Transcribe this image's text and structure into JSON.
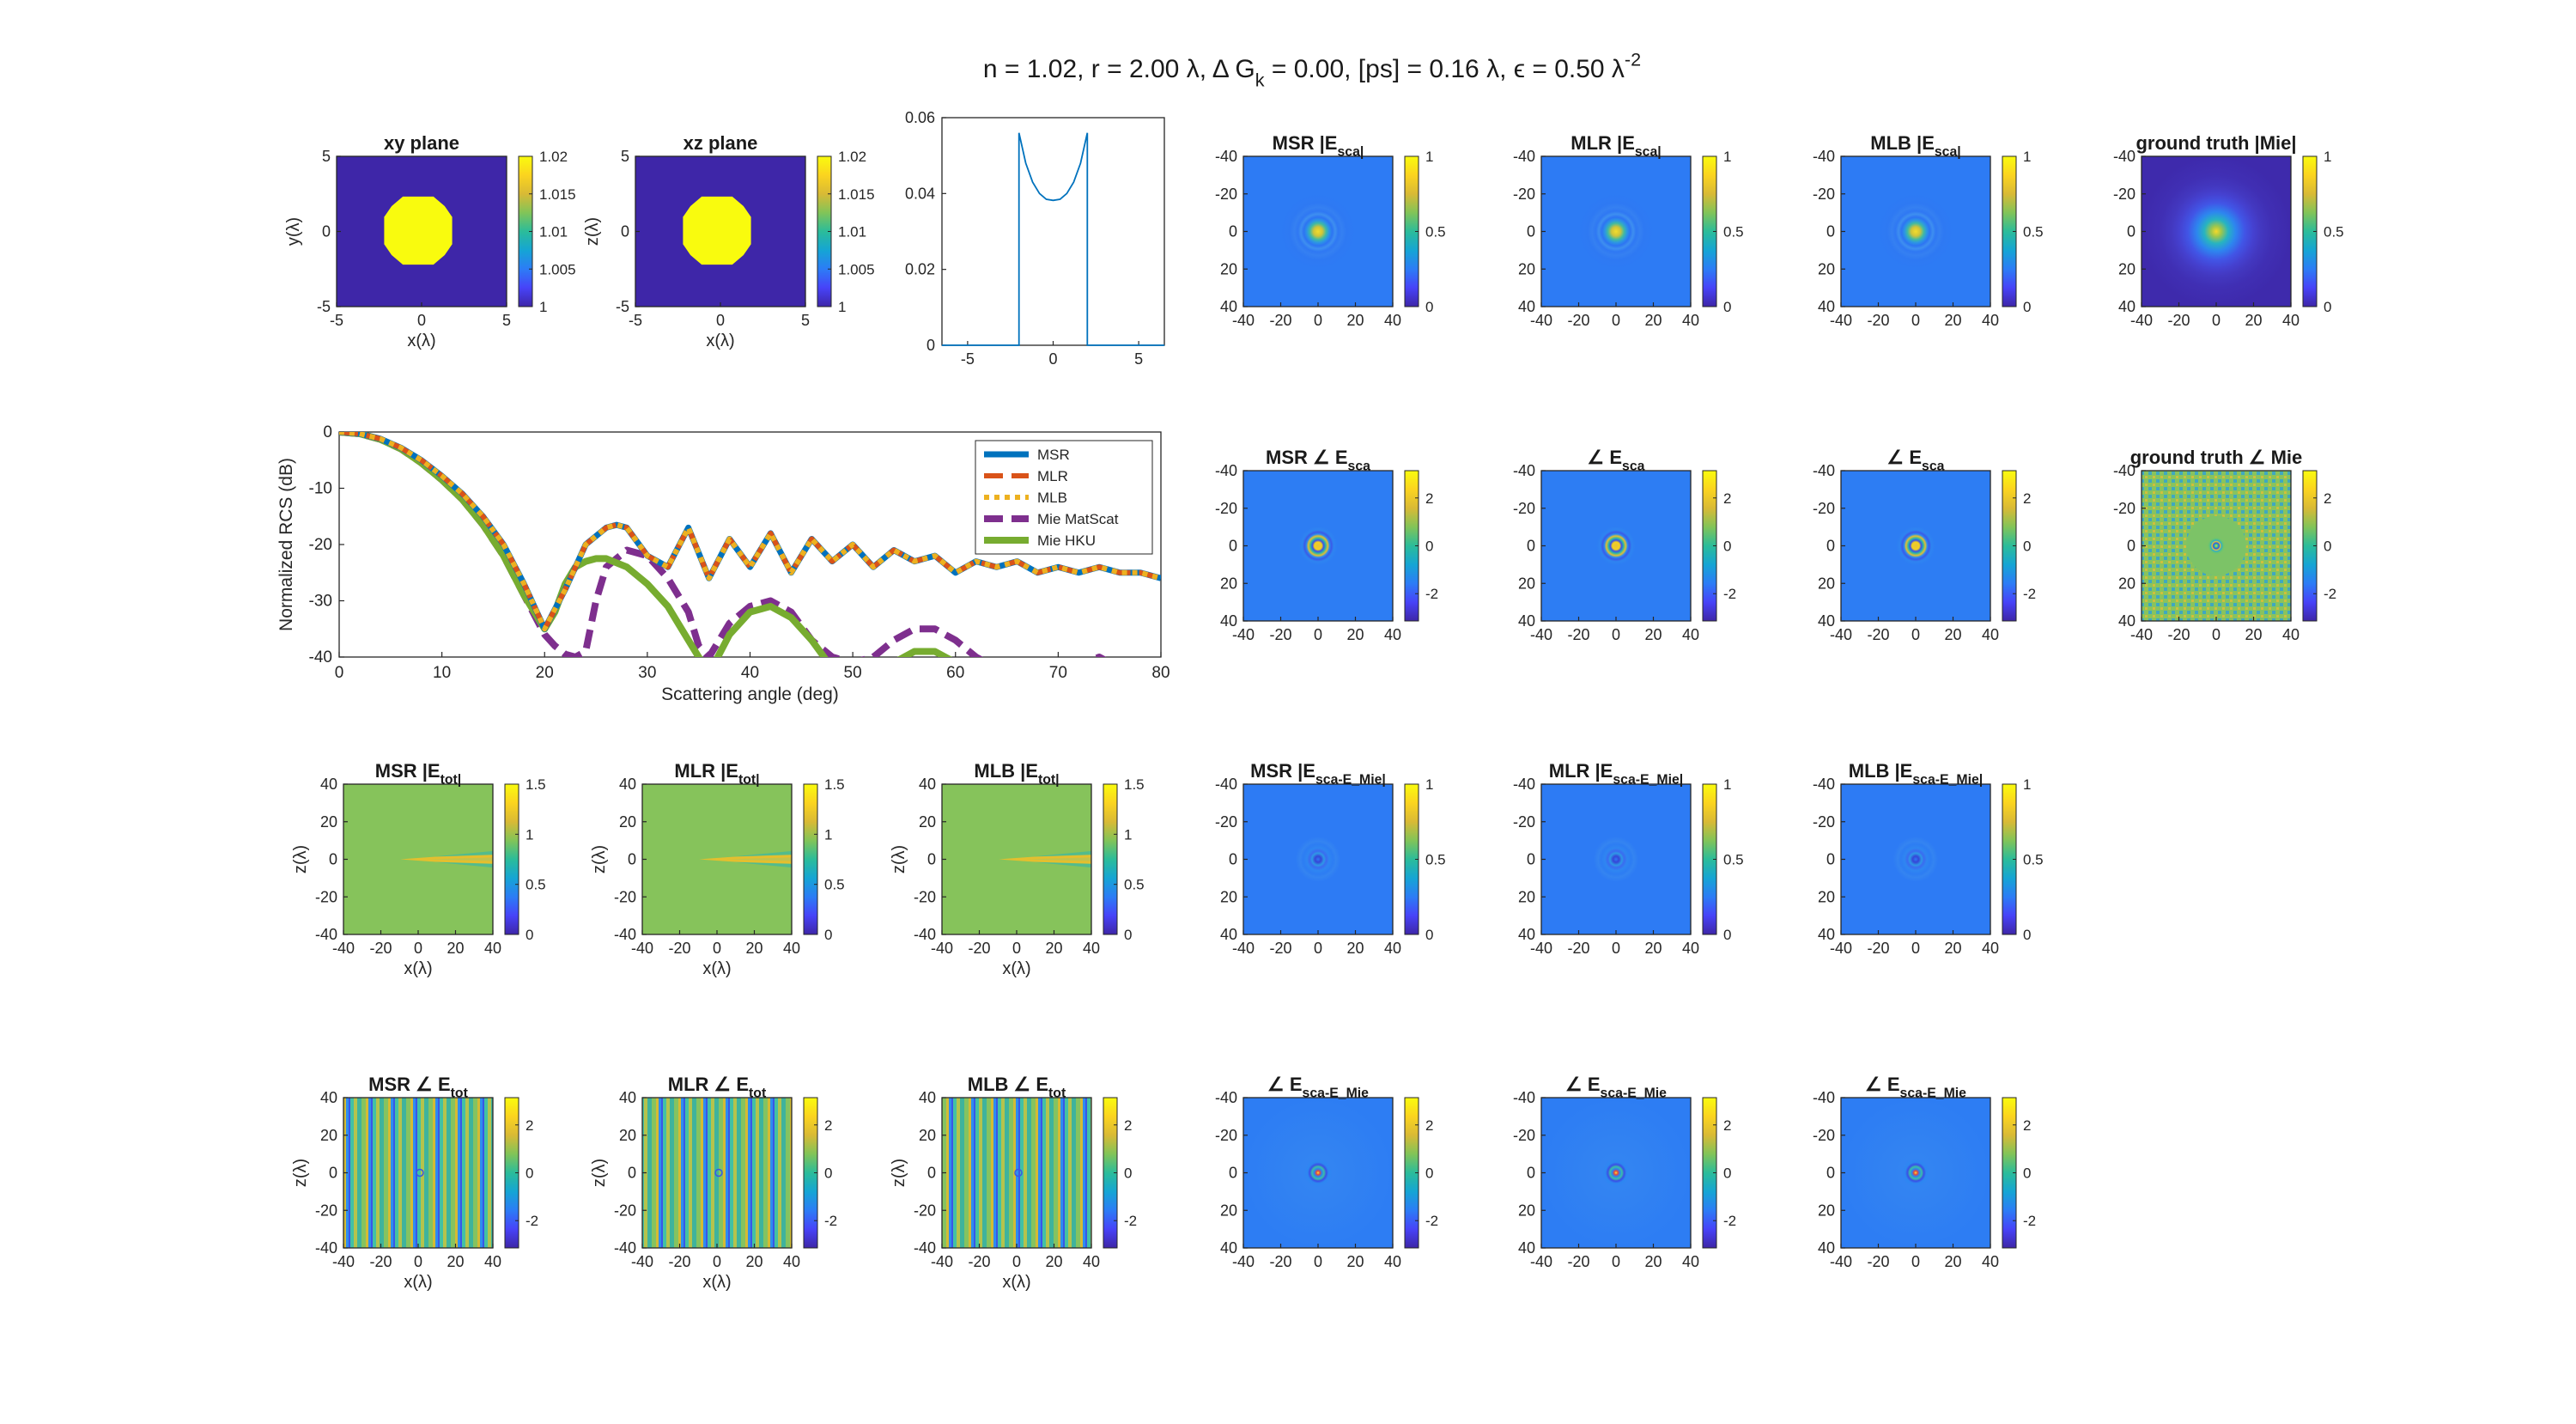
{
  "figure": {
    "suptitle": "n = 1.02, r = 2.00 λ, Δ G_k = 0.00, [ps] = 0.16 λ, ϵ = 0.50 λ^-2",
    "colormap": [
      "#3e26a8",
      "#4743f8",
      "#2c7cf6",
      "#15a5d4",
      "#2bbc9a",
      "#81c458",
      "#d9ba35",
      "#fbd41f",
      "#f9fb0e"
    ]
  },
  "chart_data": [
    {
      "type": "heatmap",
      "id": "xy-plane",
      "title": "xy plane",
      "xlabel": "x(λ)",
      "ylabel": "y(λ)",
      "xlim": [
        -5,
        5
      ],
      "ylim": [
        -5,
        5
      ],
      "xticks": [
        "-5",
        "0",
        "5"
      ],
      "yticks": [
        "5",
        "0",
        "-5"
      ],
      "clim": [
        1,
        1.02
      ],
      "cticks": [
        "1.02",
        "1.015",
        "1.01",
        "1.005",
        "1"
      ],
      "field": "index-disk"
    },
    {
      "type": "heatmap",
      "id": "xz-plane",
      "title": "xz plane",
      "xlabel": "x(λ)",
      "ylabel": "z(λ)",
      "xlim": [
        -5,
        5
      ],
      "ylim": [
        -5,
        5
      ],
      "xticks": [
        "-5",
        "0",
        "5"
      ],
      "yticks": [
        "5",
        "0",
        "-5"
      ],
      "clim": [
        1,
        1.02
      ],
      "cticks": [
        "1.02",
        "1.015",
        "1.01",
        "1.005",
        "1"
      ],
      "field": "index-disk"
    },
    {
      "type": "line",
      "id": "profile-line",
      "title": "",
      "xlim": [
        -6.5,
        6.5
      ],
      "ylim": [
        0,
        0.06
      ],
      "xticks": [
        "-5",
        "0",
        "5"
      ],
      "yticks": [
        "0.06",
        "0.04",
        "0.02",
        "0"
      ],
      "x": [
        -6.5,
        -2,
        -2,
        -1.6,
        -1.2,
        -0.8,
        -0.4,
        0,
        0.4,
        0.8,
        1.2,
        1.6,
        2,
        2,
        6.5
      ],
      "y": [
        0,
        0,
        0.056,
        0.048,
        0.043,
        0.04,
        0.0385,
        0.0382,
        0.0385,
        0.04,
        0.043,
        0.048,
        0.056,
        0,
        0
      ]
    },
    {
      "type": "line",
      "id": "rcs",
      "title": "",
      "xlabel": "Scattering angle (deg)",
      "ylabel": "Normalized RCS (dB)",
      "xlim": [
        0,
        80
      ],
      "ylim": [
        -40,
        0
      ],
      "xticks": [
        "0",
        "10",
        "20",
        "30",
        "40",
        "50",
        "60",
        "70",
        "80"
      ],
      "yticks": [
        "0",
        "-10",
        "-20",
        "-30",
        "-40"
      ],
      "legend_position": "top-right",
      "series": [
        {
          "name": "MSR",
          "color": "#0072bd",
          "style": "solid",
          "x": [
            0,
            2,
            4,
            6,
            8,
            10,
            12,
            14,
            16,
            18,
            20,
            22,
            24,
            26,
            27,
            28,
            30,
            32,
            34,
            36,
            38,
            40,
            42,
            44,
            46,
            48,
            50,
            52,
            54,
            56,
            58,
            60,
            62,
            64,
            66,
            68,
            70,
            72,
            74,
            76,
            78,
            80
          ],
          "y": [
            0,
            -0.3,
            -1.2,
            -2.8,
            -5,
            -7.8,
            -11,
            -15,
            -20,
            -27,
            -35,
            -28,
            -20,
            -17,
            -16.5,
            -17,
            -22,
            -24,
            -17,
            -26,
            -19,
            -24,
            -18,
            -25,
            -19,
            -23,
            -20,
            -24,
            -21,
            -23,
            -22,
            -25,
            -23,
            -24,
            -23,
            -25,
            -24,
            -25,
            -24,
            -25,
            -25,
            -26
          ]
        },
        {
          "name": "MLR",
          "color": "#d95319",
          "style": "dashed",
          "x": [
            0,
            2,
            4,
            6,
            8,
            10,
            12,
            14,
            16,
            18,
            20,
            22,
            24,
            26,
            27,
            28,
            30,
            32,
            34,
            36,
            38,
            40,
            42,
            44,
            46,
            48,
            50,
            52,
            54,
            56,
            58,
            60,
            62,
            64,
            66,
            68,
            70,
            72,
            74,
            76,
            78,
            80
          ],
          "y": [
            0,
            -0.3,
            -1.2,
            -2.8,
            -5,
            -7.8,
            -11,
            -15,
            -20,
            -27,
            -35,
            -28,
            -20,
            -17,
            -16.5,
            -17,
            -22,
            -24,
            -17,
            -26,
            -19,
            -24,
            -18,
            -25,
            -19,
            -23,
            -20,
            -24,
            -21,
            -23,
            -22,
            -25,
            -23,
            -24,
            -23,
            -25,
            -24,
            -25,
            -24,
            -25,
            -25,
            -26
          ]
        },
        {
          "name": "MLB",
          "color": "#edb120",
          "style": "dotted",
          "x": [
            0,
            2,
            4,
            6,
            8,
            10,
            12,
            14,
            16,
            18,
            20,
            22,
            24,
            26,
            27,
            28,
            30,
            32,
            34,
            36,
            38,
            40,
            42,
            44,
            46,
            48,
            50,
            52,
            54,
            56,
            58,
            60,
            62,
            64,
            66,
            68,
            70,
            72,
            74,
            76,
            78,
            80
          ],
          "y": [
            0,
            -0.3,
            -1.2,
            -2.8,
            -5,
            -7.8,
            -11,
            -15,
            -20,
            -27,
            -35,
            -28,
            -20,
            -17,
            -16.5,
            -17,
            -22,
            -24,
            -17,
            -26,
            -19,
            -24,
            -18,
            -25,
            -19,
            -23,
            -20,
            -24,
            -21,
            -23,
            -22,
            -25,
            -23,
            -24,
            -23,
            -25,
            -24,
            -25,
            -24,
            -25,
            -25,
            -26
          ]
        },
        {
          "name": "Mie MatScat",
          "color": "#7e2f8e",
          "style": "dashed",
          "x": [
            0,
            2,
            4,
            6,
            8,
            10,
            12,
            14,
            16,
            18,
            20,
            21,
            22,
            23,
            24,
            25,
            26,
            28,
            30,
            32,
            34,
            35,
            36,
            38,
            40,
            42,
            44,
            46,
            48,
            50,
            52,
            54,
            56,
            58,
            60,
            62,
            63,
            64,
            66,
            70,
            74,
            75
          ],
          "y": [
            0,
            -0.3,
            -1.3,
            -3,
            -5.5,
            -8.5,
            -12,
            -16.5,
            -22,
            -29,
            -36,
            -38,
            -39.5,
            -40,
            -39,
            -30,
            -24,
            -21,
            -22,
            -26,
            -32,
            -38,
            -40,
            -34,
            -31,
            -30,
            -32,
            -37,
            -40,
            -41,
            -40,
            -37,
            -35,
            -35,
            -37,
            -40,
            -41,
            -42,
            -42,
            -43,
            -40,
            -41
          ]
        },
        {
          "name": "Mie HKU",
          "color": "#77ac30",
          "style": "solid",
          "x": [
            0,
            2,
            4,
            6,
            8,
            10,
            12,
            14,
            16,
            18,
            20,
            21,
            22,
            23,
            24,
            25,
            26,
            28,
            30,
            32,
            34,
            35,
            36,
            38,
            40,
            42,
            44,
            46,
            48,
            50,
            52,
            54,
            56,
            58,
            60,
            62,
            64
          ],
          "y": [
            0,
            -0.3,
            -1.3,
            -3,
            -5.5,
            -8.5,
            -12,
            -16.5,
            -22,
            -29,
            -35,
            -32,
            -27,
            -24,
            -23,
            -22.5,
            -22.5,
            -24,
            -27,
            -31,
            -37,
            -40,
            -43,
            -36,
            -32,
            -31,
            -33,
            -37,
            -42,
            -45,
            -44,
            -41,
            -39,
            -39,
            -41,
            -44,
            -47
          ]
        }
      ]
    },
    {
      "type": "heatmap",
      "id": "msr-abs-esca",
      "title": "MSR |E_sca|",
      "xticks": [
        "-40",
        "-20",
        "0",
        "20",
        "40"
      ],
      "yticks": [
        "-40",
        "-20",
        "0",
        "20",
        "40"
      ],
      "clim": [
        0,
        1
      ],
      "cticks": [
        "1",
        "0.5",
        "0"
      ],
      "field": "abs-sca"
    },
    {
      "type": "heatmap",
      "id": "mlr-abs-esca",
      "title": "MLR |E_sca|",
      "xticks": [
        "-40",
        "-20",
        "0",
        "20",
        "40"
      ],
      "yticks": [
        "-40",
        "-20",
        "0",
        "20",
        "40"
      ],
      "clim": [
        0,
        1
      ],
      "cticks": [
        "1",
        "0.5",
        "0"
      ],
      "field": "abs-sca"
    },
    {
      "type": "heatmap",
      "id": "mlb-abs-esca",
      "title": "MLB |E_sca|",
      "xticks": [
        "-40",
        "-20",
        "0",
        "20",
        "40"
      ],
      "yticks": [
        "-40",
        "-20",
        "0",
        "20",
        "40"
      ],
      "clim": [
        0,
        1
      ],
      "cticks": [
        "1",
        "0.5",
        "0"
      ],
      "field": "abs-sca"
    },
    {
      "type": "heatmap",
      "id": "gt-abs-mie",
      "title": "ground truth |Mie|",
      "xticks": [
        "-40",
        "-20",
        "0",
        "20",
        "40"
      ],
      "yticks": [
        "-40",
        "-20",
        "0",
        "20",
        "40"
      ],
      "clim": [
        0,
        1
      ],
      "cticks": [
        "1",
        "0.5",
        "0"
      ],
      "field": "abs-mie"
    },
    {
      "type": "heatmap",
      "id": "msr-ang-esca",
      "title": "MSR ∠ E_sca",
      "xticks": [
        "-40",
        "-20",
        "0",
        "20",
        "40"
      ],
      "yticks": [
        "-40",
        "-20",
        "0",
        "20",
        "40"
      ],
      "clim": [
        -3.14,
        3.14
      ],
      "cticks": [
        "2",
        "0",
        "-2"
      ],
      "field": "ang-sca"
    },
    {
      "type": "heatmap",
      "id": "mlr-ang-esca",
      "title": "∠ E_sca",
      "xticks": [
        "-40",
        "-20",
        "0",
        "20",
        "40"
      ],
      "yticks": [
        "-40",
        "-20",
        "0",
        "20",
        "40"
      ],
      "clim": [
        -3.14,
        3.14
      ],
      "cticks": [
        "2",
        "0",
        "-2"
      ],
      "field": "ang-sca"
    },
    {
      "type": "heatmap",
      "id": "mlb-ang-esca",
      "title": "∠ E_sca",
      "xticks": [
        "-40",
        "-20",
        "0",
        "20",
        "40"
      ],
      "yticks": [
        "-40",
        "-20",
        "0",
        "20",
        "40"
      ],
      "clim": [
        -3.14,
        3.14
      ],
      "cticks": [
        "2",
        "0",
        "-2"
      ],
      "field": "ang-sca"
    },
    {
      "type": "heatmap",
      "id": "gt-ang-mie",
      "title": "ground truth ∠ Mie",
      "xticks": [
        "-40",
        "-20",
        "0",
        "20",
        "40"
      ],
      "yticks": [
        "-40",
        "-20",
        "0",
        "20",
        "40"
      ],
      "clim": [
        -3.14,
        3.14
      ],
      "cticks": [
        "2",
        "0",
        "-2"
      ],
      "field": "ang-mie"
    },
    {
      "type": "heatmap",
      "id": "msr-abs-etot",
      "title": "MSR |E_tot|",
      "xlabel": "x(λ)",
      "ylabel": "z(λ)",
      "xticks": [
        "-40",
        "-20",
        "0",
        "20",
        "40"
      ],
      "yticks": [
        "40",
        "20",
        "0",
        "-20",
        "-40"
      ],
      "clim": [
        0,
        1.5
      ],
      "cticks": [
        "1.5",
        "1",
        "0.5",
        "0"
      ],
      "field": "abs-tot"
    },
    {
      "type": "heatmap",
      "id": "mlr-abs-etot",
      "title": "MLR |E_tot|",
      "xlabel": "x(λ)",
      "ylabel": "z(λ)",
      "xticks": [
        "-40",
        "-20",
        "0",
        "20",
        "40"
      ],
      "yticks": [
        "40",
        "20",
        "0",
        "-20",
        "-40"
      ],
      "clim": [
        0,
        1.5
      ],
      "cticks": [
        "1.5",
        "1",
        "0.5",
        "0"
      ],
      "field": "abs-tot"
    },
    {
      "type": "heatmap",
      "id": "mlb-abs-etot",
      "title": "MLB |E_tot|",
      "xlabel": "x(λ)",
      "ylabel": "z(λ)",
      "xticks": [
        "-40",
        "-20",
        "0",
        "20",
        "40"
      ],
      "yticks": [
        "40",
        "20",
        "0",
        "-20",
        "-40"
      ],
      "clim": [
        0,
        1.5
      ],
      "cticks": [
        "1.5",
        "1",
        "0.5",
        "0"
      ],
      "field": "abs-tot"
    },
    {
      "type": "heatmap",
      "id": "msr-abs-err",
      "title": "MSR |E_sca-E_Mie|",
      "xticks": [
        "-40",
        "-20",
        "0",
        "20",
        "40"
      ],
      "yticks": [
        "-40",
        "-20",
        "0",
        "20",
        "40"
      ],
      "clim": [
        0,
        1
      ],
      "cticks": [
        "1",
        "0.5",
        "0"
      ],
      "field": "abs-err"
    },
    {
      "type": "heatmap",
      "id": "mlr-abs-err",
      "title": "MLR |E_sca-E_Mie|",
      "xticks": [
        "-40",
        "-20",
        "0",
        "20",
        "40"
      ],
      "yticks": [
        "-40",
        "-20",
        "0",
        "20",
        "40"
      ],
      "clim": [
        0,
        1
      ],
      "cticks": [
        "1",
        "0.5",
        "0"
      ],
      "field": "abs-err"
    },
    {
      "type": "heatmap",
      "id": "mlb-abs-err",
      "title": "MLB |E_sca-E_Mie|",
      "xticks": [
        "-40",
        "-20",
        "0",
        "20",
        "40"
      ],
      "yticks": [
        "-40",
        "-20",
        "0",
        "20",
        "40"
      ],
      "clim": [
        0,
        1
      ],
      "cticks": [
        "1",
        "0.5",
        "0"
      ],
      "field": "abs-err"
    },
    {
      "type": "heatmap",
      "id": "msr-ang-etot",
      "title": "MSR ∠ E_tot",
      "xlabel": "x(λ)",
      "ylabel": "z(λ)",
      "xticks": [
        "-40",
        "-20",
        "0",
        "20",
        "40"
      ],
      "yticks": [
        "40",
        "20",
        "0",
        "-20",
        "-40"
      ],
      "clim": [
        -3.14,
        3.14
      ],
      "cticks": [
        "2",
        "0",
        "-2"
      ],
      "field": "ang-tot"
    },
    {
      "type": "heatmap",
      "id": "mlr-ang-etot",
      "title": "MLR ∠ E_tot",
      "xlabel": "x(λ)",
      "ylabel": "z(λ)",
      "xticks": [
        "-40",
        "-20",
        "0",
        "20",
        "40"
      ],
      "yticks": [
        "40",
        "20",
        "0",
        "-20",
        "-40"
      ],
      "clim": [
        -3.14,
        3.14
      ],
      "cticks": [
        "2",
        "0",
        "-2"
      ],
      "field": "ang-tot"
    },
    {
      "type": "heatmap",
      "id": "mlb-ang-etot",
      "title": "MLB ∠ E_tot",
      "xlabel": "x(λ)",
      "ylabel": "z(λ)",
      "xticks": [
        "-40",
        "-20",
        "0",
        "20",
        "40"
      ],
      "yticks": [
        "40",
        "20",
        "0",
        "-20",
        "-40"
      ],
      "clim": [
        -3.14,
        3.14
      ],
      "cticks": [
        "2",
        "0",
        "-2"
      ],
      "field": "ang-tot"
    },
    {
      "type": "heatmap",
      "id": "msr-ang-err",
      "title": "∠ E_sca-E_Mie",
      "xticks": [
        "-40",
        "-20",
        "0",
        "20",
        "40"
      ],
      "yticks": [
        "-40",
        "-20",
        "0",
        "20",
        "40"
      ],
      "clim": [
        -3.14,
        3.14
      ],
      "cticks": [
        "2",
        "0",
        "-2"
      ],
      "field": "ang-err"
    },
    {
      "type": "heatmap",
      "id": "mlr-ang-err",
      "title": "∠ E_sca-E_Mie",
      "xticks": [
        "-40",
        "-20",
        "0",
        "20",
        "40"
      ],
      "yticks": [
        "-40",
        "-20",
        "0",
        "20",
        "40"
      ],
      "clim": [
        -3.14,
        3.14
      ],
      "cticks": [
        "2",
        "0",
        "-2"
      ],
      "field": "ang-err"
    },
    {
      "type": "heatmap",
      "id": "mlb-ang-err",
      "title": "∠ E_sca-E_Mie",
      "xticks": [
        "-40",
        "-20",
        "0",
        "20",
        "40"
      ],
      "yticks": [
        "-40",
        "-20",
        "0",
        "20",
        "40"
      ],
      "clim": [
        -3.14,
        3.14
      ],
      "cticks": [
        "2",
        "0",
        "-2"
      ],
      "field": "ang-err"
    }
  ]
}
